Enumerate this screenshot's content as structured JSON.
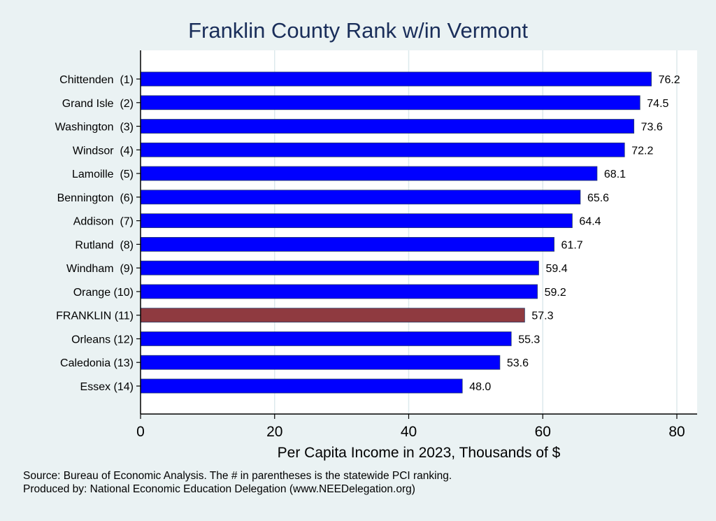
{
  "chart_data": {
    "type": "bar",
    "orientation": "horizontal",
    "title": "Franklin County Rank w/in Vermont",
    "xlabel": "Per Capita Income in 2023, Thousands of $",
    "ylabel": "",
    "xlim": [
      0,
      82.7
    ],
    "xticks": [
      0,
      20,
      40,
      60,
      80
    ],
    "grid": true,
    "categories": [
      "Chittenden  (1)",
      "Grand Isle  (2)",
      "Washington  (3)",
      "Windsor  (4)",
      "Lamoille  (5)",
      "Bennington  (6)",
      "Addison  (7)",
      "Rutland  (8)",
      "Windham  (9)",
      "Orange (10)",
      "FRANKLIN (11)",
      "Orleans (12)",
      "Caledonia (13)",
      "Essex (14)"
    ],
    "values": [
      76.2,
      74.5,
      73.6,
      72.2,
      68.1,
      65.6,
      64.4,
      61.7,
      59.4,
      59.2,
      57.3,
      55.3,
      53.6,
      48.0
    ],
    "value_labels": [
      "76.2",
      "74.5",
      "73.6",
      "72.2",
      "68.1",
      "65.6",
      "64.4",
      "61.7",
      "59.4",
      "59.2",
      "57.3",
      "55.3",
      "53.6",
      "48.0"
    ],
    "highlight": "FRANKLIN (11)",
    "colors": {
      "bar": "#0000ff",
      "highlight": "#8f3a40",
      "grid": "#dde9ec",
      "background": "#eaf2f3",
      "title": "#1a2e5a"
    }
  },
  "notes": {
    "source": "Source: Bureau of Economic Analysis. The # in parentheses is the statewide PCI ranking.",
    "produced": "Produced by: National Economic Education Delegation (www.NEEDelegation.org)"
  }
}
